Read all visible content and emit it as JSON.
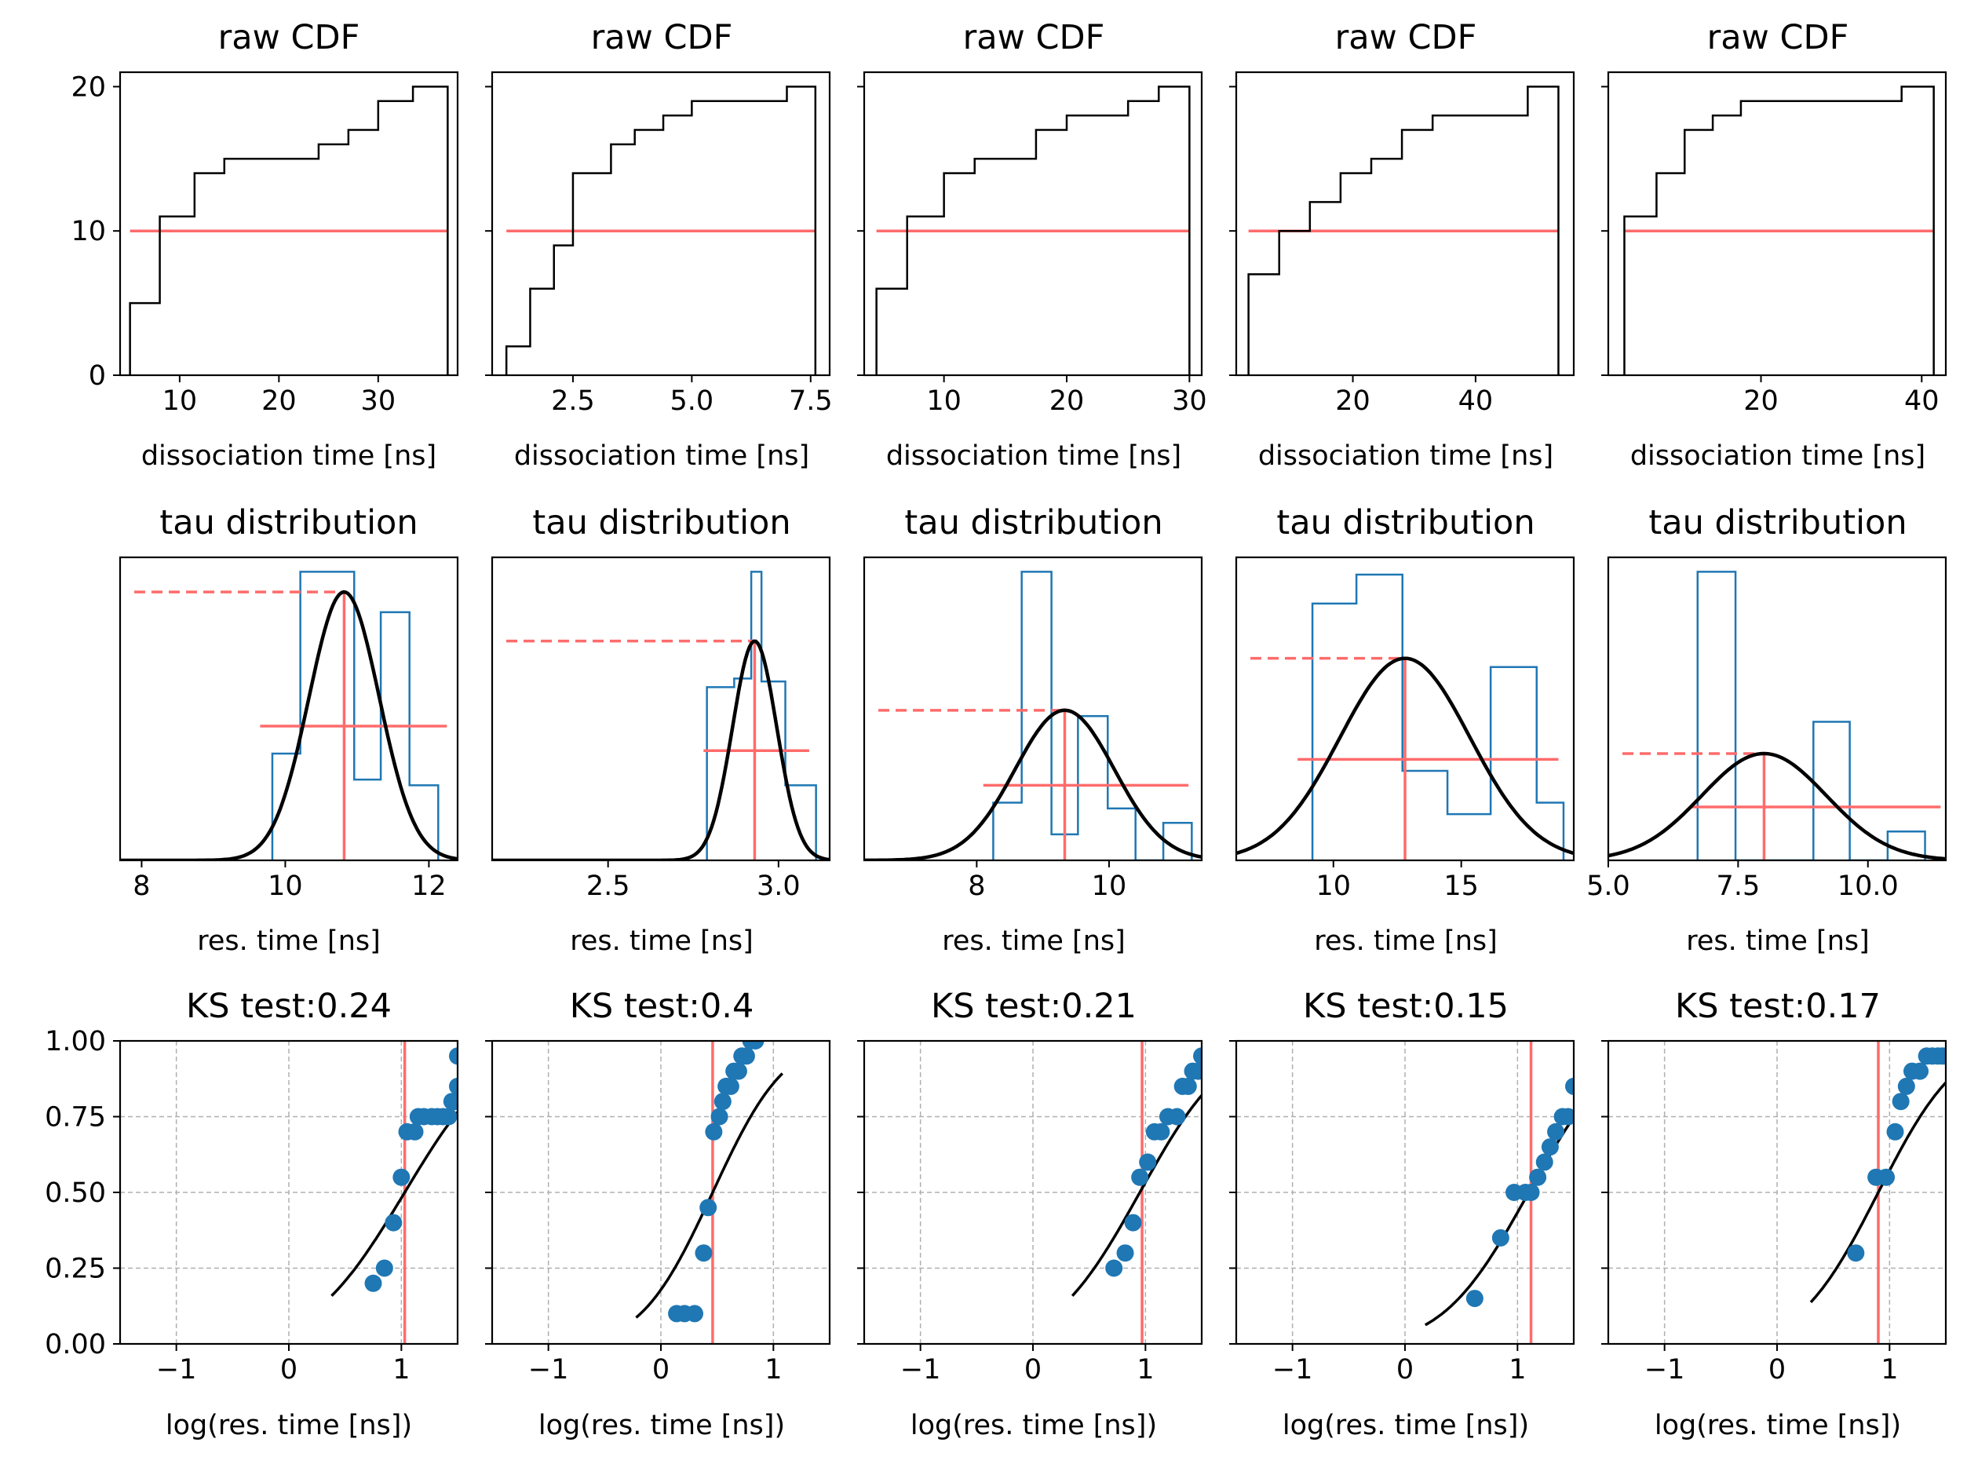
{
  "figure": {
    "colors": {
      "step": "#000000",
      "hist": "#1f77b4",
      "red": "#ff6b6b",
      "fit": "#000000",
      "scatter": "#1f77b4",
      "grid": "#b0b0b0"
    }
  },
  "chart_data": [
    {
      "type": "line",
      "row": 0,
      "col": 0,
      "title": "raw CDF",
      "xlabel": "dissociation time [ns]",
      "ylabel": "",
      "xlim": [
        4,
        38
      ],
      "ylim": [
        0,
        21
      ],
      "xticks": [
        10,
        20,
        30
      ],
      "yticks": [
        0,
        10,
        20
      ],
      "steps": [
        [
          5,
          5
        ],
        [
          8,
          11
        ],
        [
          11.5,
          14
        ],
        [
          14.5,
          15
        ],
        [
          24,
          16
        ],
        [
          27,
          17
        ],
        [
          30,
          19
        ],
        [
          33.5,
          20
        ],
        [
          37,
          0
        ]
      ],
      "hline": 10
    },
    {
      "type": "line",
      "row": 0,
      "col": 1,
      "title": "raw CDF",
      "xlabel": "dissociation time [ns]",
      "ylabel": "",
      "xlim": [
        0.8,
        7.9
      ],
      "ylim": [
        0,
        21
      ],
      "xticks": [
        2.5,
        5.0,
        7.5
      ],
      "yticks": [
        0,
        10,
        20
      ],
      "steps": [
        [
          1.1,
          2
        ],
        [
          1.6,
          6
        ],
        [
          2.1,
          9
        ],
        [
          2.5,
          14
        ],
        [
          3.3,
          16
        ],
        [
          3.8,
          17
        ],
        [
          4.4,
          18
        ],
        [
          5.0,
          19
        ],
        [
          7.0,
          20
        ],
        [
          7.6,
          0
        ]
      ],
      "hline": 10
    },
    {
      "type": "line",
      "row": 0,
      "col": 2,
      "title": "raw CDF",
      "xlabel": "dissociation time [ns]",
      "ylabel": "",
      "xlim": [
        3.5,
        31
      ],
      "ylim": [
        0,
        21
      ],
      "xticks": [
        10,
        20,
        30
      ],
      "yticks": [
        0,
        10,
        20
      ],
      "steps": [
        [
          4.5,
          6
        ],
        [
          7,
          11
        ],
        [
          10,
          14
        ],
        [
          12.5,
          15
        ],
        [
          17.5,
          17
        ],
        [
          20,
          18
        ],
        [
          25,
          19
        ],
        [
          27.5,
          20
        ],
        [
          30,
          0
        ]
      ],
      "hline": 10
    },
    {
      "type": "line",
      "row": 0,
      "col": 3,
      "title": "raw CDF",
      "xlabel": "dissociation time [ns]",
      "ylabel": "",
      "xlim": [
        1,
        56
      ],
      "ylim": [
        0,
        21
      ],
      "xticks": [
        20,
        40
      ],
      "yticks": [
        0,
        10,
        20
      ],
      "steps": [
        [
          3,
          7
        ],
        [
          8,
          10
        ],
        [
          13,
          12
        ],
        [
          18,
          14
        ],
        [
          23,
          15
        ],
        [
          28,
          17
        ],
        [
          33,
          18
        ],
        [
          48.5,
          20
        ],
        [
          53.5,
          0
        ]
      ],
      "hline": 10
    },
    {
      "type": "line",
      "row": 0,
      "col": 4,
      "title": "raw CDF",
      "xlabel": "dissociation time [ns]",
      "ylabel": "",
      "xlim": [
        1,
        43
      ],
      "ylim": [
        0,
        21
      ],
      "xticks": [
        20,
        40
      ],
      "yticks": [
        0,
        10,
        20
      ],
      "steps": [
        [
          3,
          11
        ],
        [
          7,
          14
        ],
        [
          10.5,
          17
        ],
        [
          14,
          18
        ],
        [
          17.5,
          19
        ],
        [
          37.5,
          20
        ],
        [
          41.5,
          0
        ]
      ],
      "hline": 10
    },
    {
      "type": "bar",
      "row": 1,
      "col": 0,
      "title": "tau distribution",
      "xlabel": "res. time [ns]",
      "ylabel": "",
      "xlim": [
        7.7,
        12.4
      ],
      "ylim": [
        0,
        1.05
      ],
      "xticks": [
        8,
        10,
        12
      ],
      "bin_edges": [
        9.82,
        10.21,
        10.96,
        11.33,
        11.73,
        12.13
      ],
      "bin_heights": [
        0.37,
        1.0,
        0.28,
        0.86,
        0.26
      ],
      "fit": {
        "mu": 10.82,
        "sigma": 0.49,
        "peak": 0.93
      },
      "red": {
        "x": 10.82,
        "dash_y": 0.93,
        "hline_y": 0.465,
        "hline_x": [
          9.65,
          12.25
        ]
      }
    },
    {
      "type": "bar",
      "row": 1,
      "col": 1,
      "title": "tau distribution",
      "xlabel": "res. time [ns]",
      "ylabel": "",
      "xlim": [
        2.16,
        3.15
      ],
      "ylim": [
        0,
        1.05
      ],
      "xticks": [
        2.5,
        3.0
      ],
      "bin_edges": [
        2.79,
        2.87,
        2.92,
        2.95,
        3.02,
        3.11
      ],
      "bin_heights": [
        0.6,
        0.63,
        1.0,
        0.62,
        0.26
      ],
      "fit": {
        "mu": 2.93,
        "sigma": 0.065,
        "peak": 0.76
      },
      "red": {
        "x": 2.93,
        "dash_y": 0.76,
        "hline_y": 0.38,
        "hline_x": [
          2.78,
          3.09
        ]
      }
    },
    {
      "type": "bar",
      "row": 1,
      "col": 2,
      "title": "tau distribution",
      "xlabel": "res. time [ns]",
      "ylabel": "",
      "xlim": [
        6.3,
        11.4
      ],
      "ylim": [
        0,
        1.05
      ],
      "xticks": [
        8,
        10
      ],
      "bin_edges": [
        8.25,
        8.68,
        9.13,
        9.53,
        9.98,
        10.4,
        10.82,
        11.25
      ],
      "bin_heights": [
        0.2,
        1.0,
        0.09,
        0.5,
        0.18,
        0.0,
        0.13
      ],
      "fit": {
        "mu": 9.33,
        "sigma": 0.75,
        "peak": 0.52
      },
      "red": {
        "x": 9.33,
        "dash_y": 0.52,
        "hline_y": 0.26,
        "hline_x": [
          8.1,
          11.2
        ]
      }
    },
    {
      "type": "bar",
      "row": 1,
      "col": 3,
      "title": "tau distribution",
      "xlabel": "res. time [ns]",
      "ylabel": "",
      "xlim": [
        6.2,
        19.4
      ],
      "ylim": [
        0,
        1.05
      ],
      "xticks": [
        10,
        15
      ],
      "bin_edges": [
        9.18,
        10.9,
        12.7,
        14.46,
        16.15,
        17.95,
        19.0
      ],
      "bin_heights": [
        0.89,
        0.99,
        0.31,
        0.16,
        0.67,
        0.2
      ],
      "fit": {
        "mu": 12.8,
        "sigma": 2.55,
        "peak": 0.7
      },
      "red": {
        "x": 12.8,
        "dash_y": 0.7,
        "hline_y": 0.35,
        "hline_x": [
          8.6,
          18.8
        ]
      }
    },
    {
      "type": "bar",
      "row": 1,
      "col": 4,
      "title": "tau distribution",
      "xlabel": "res. time [ns]",
      "ylabel": "",
      "xlim": [
        5.0,
        11.5
      ],
      "ylim": [
        0,
        1.05
      ],
      "xticks": [
        5.0,
        7.5,
        10.0
      ],
      "bin_edges": [
        6.72,
        7.45,
        8.17,
        8.95,
        9.65,
        10.38,
        11.1
      ],
      "bin_heights": [
        1.0,
        0.0,
        0.0,
        0.48,
        0.0,
        0.1
      ],
      "fit": {
        "mu": 8.0,
        "sigma": 1.2,
        "peak": 0.37
      },
      "red": {
        "x": 8.0,
        "dash_y": 0.37,
        "hline_y": 0.185,
        "hline_x": [
          6.6,
          11.4
        ]
      }
    },
    {
      "type": "scatter",
      "row": 2,
      "col": 0,
      "title": "KS test:0.24",
      "xlabel": "log(res. time [ns])",
      "ylabel": "",
      "xlim": [
        -1.5,
        1.5
      ],
      "ylim": [
        0,
        1
      ],
      "xticks": [
        -1,
        0,
        1
      ],
      "yticks": [
        "0.00",
        "0.25",
        "0.50",
        "0.75",
        "1.00"
      ],
      "vline": 1.03,
      "points": [
        [
          0.75,
          0.2
        ],
        [
          0.85,
          0.25
        ],
        [
          0.93,
          0.4
        ],
        [
          1.0,
          0.55
        ],
        [
          1.05,
          0.7
        ],
        [
          1.12,
          0.7
        ],
        [
          1.15,
          0.75
        ],
        [
          1.2,
          0.75
        ],
        [
          1.27,
          0.75
        ],
        [
          1.32,
          0.75
        ],
        [
          1.37,
          0.75
        ],
        [
          1.42,
          0.75
        ],
        [
          1.45,
          0.8
        ],
        [
          1.48,
          0.8
        ],
        [
          1.5,
          0.85
        ],
        [
          1.5,
          0.95
        ]
      ],
      "fit": {
        "mu": 1.03,
        "sigma": 0.65,
        "x0": 0.38,
        "x1": 1.5
      }
    },
    {
      "type": "scatter",
      "row": 2,
      "col": 1,
      "title": "KS test:0.4",
      "xlabel": "log(res. time [ns])",
      "ylabel": "",
      "xlim": [
        -1.5,
        1.5
      ],
      "ylim": [
        0,
        1
      ],
      "xticks": [
        -1,
        0,
        1
      ],
      "yticks": [
        "0.00",
        "0.25",
        "0.50",
        "0.75",
        "1.00"
      ],
      "vline": 0.46,
      "points": [
        [
          0.14,
          0.1
        ],
        [
          0.21,
          0.1
        ],
        [
          0.3,
          0.1
        ],
        [
          0.38,
          0.3
        ],
        [
          0.42,
          0.45
        ],
        [
          0.47,
          0.7
        ],
        [
          0.52,
          0.75
        ],
        [
          0.55,
          0.8
        ],
        [
          0.58,
          0.85
        ],
        [
          0.62,
          0.85
        ],
        [
          0.65,
          0.9
        ],
        [
          0.69,
          0.9
        ],
        [
          0.72,
          0.95
        ],
        [
          0.76,
          0.95
        ],
        [
          0.8,
          1.0
        ],
        [
          0.84,
          1.0
        ]
      ],
      "fit": {
        "mu": 0.46,
        "sigma": 0.5,
        "x0": -0.22,
        "x1": 1.08
      }
    },
    {
      "type": "scatter",
      "row": 2,
      "col": 2,
      "title": "KS test:0.21",
      "xlabel": "log(res. time [ns])",
      "ylabel": "",
      "xlim": [
        -1.5,
        1.5
      ],
      "ylim": [
        0,
        1
      ],
      "xticks": [
        -1,
        0,
        1
      ],
      "yticks": [
        "0.00",
        "0.25",
        "0.50",
        "0.75",
        "1.00"
      ],
      "vline": 0.97,
      "points": [
        [
          0.72,
          0.25
        ],
        [
          0.82,
          0.3
        ],
        [
          0.89,
          0.4
        ],
        [
          0.95,
          0.55
        ],
        [
          1.02,
          0.6
        ],
        [
          1.08,
          0.7
        ],
        [
          1.14,
          0.7
        ],
        [
          1.2,
          0.75
        ],
        [
          1.28,
          0.75
        ],
        [
          1.33,
          0.85
        ],
        [
          1.38,
          0.85
        ],
        [
          1.42,
          0.9
        ],
        [
          1.47,
          0.9
        ],
        [
          1.5,
          0.95
        ]
      ],
      "fit": {
        "mu": 0.95,
        "sigma": 0.6,
        "x0": 0.35,
        "x1": 1.5
      }
    },
    {
      "type": "scatter",
      "row": 2,
      "col": 3,
      "title": "KS test:0.15",
      "xlabel": "log(res. time [ns])",
      "ylabel": "",
      "xlim": [
        -1.5,
        1.5
      ],
      "ylim": [
        0,
        1
      ],
      "xticks": [
        -1,
        0,
        1
      ],
      "yticks": [
        "0.00",
        "0.25",
        "0.50",
        "0.75",
        "1.00"
      ],
      "vline": 1.12,
      "points": [
        [
          0.62,
          0.15
        ],
        [
          0.85,
          0.35
        ],
        [
          0.97,
          0.5
        ],
        [
          1.07,
          0.5
        ],
        [
          1.12,
          0.5
        ],
        [
          1.18,
          0.55
        ],
        [
          1.24,
          0.6
        ],
        [
          1.29,
          0.65
        ],
        [
          1.34,
          0.7
        ],
        [
          1.4,
          0.75
        ],
        [
          1.45,
          0.75
        ],
        [
          1.5,
          0.85
        ]
      ],
      "fit": {
        "mu": 1.1,
        "sigma": 0.6,
        "x0": 0.18,
        "x1": 1.5
      }
    },
    {
      "type": "scatter",
      "row": 2,
      "col": 4,
      "title": "KS test:0.17",
      "xlabel": "log(res. time [ns])",
      "ylabel": "",
      "xlim": [
        -1.5,
        1.5
      ],
      "ylim": [
        0,
        1
      ],
      "xticks": [
        -1,
        0,
        1
      ],
      "yticks": [
        "0.00",
        "0.25",
        "0.50",
        "0.75",
        "1.00"
      ],
      "vline": 0.9,
      "points": [
        [
          0.7,
          0.3
        ],
        [
          0.88,
          0.55
        ],
        [
          0.97,
          0.55
        ],
        [
          1.05,
          0.7
        ],
        [
          1.1,
          0.8
        ],
        [
          1.15,
          0.85
        ],
        [
          1.2,
          0.9
        ],
        [
          1.27,
          0.9
        ],
        [
          1.33,
          0.95
        ],
        [
          1.38,
          0.95
        ],
        [
          1.43,
          0.95
        ],
        [
          1.47,
          0.95
        ],
        [
          1.5,
          0.95
        ]
      ],
      "fit": {
        "mu": 0.9,
        "sigma": 0.55,
        "x0": 0.3,
        "x1": 1.5
      }
    }
  ]
}
